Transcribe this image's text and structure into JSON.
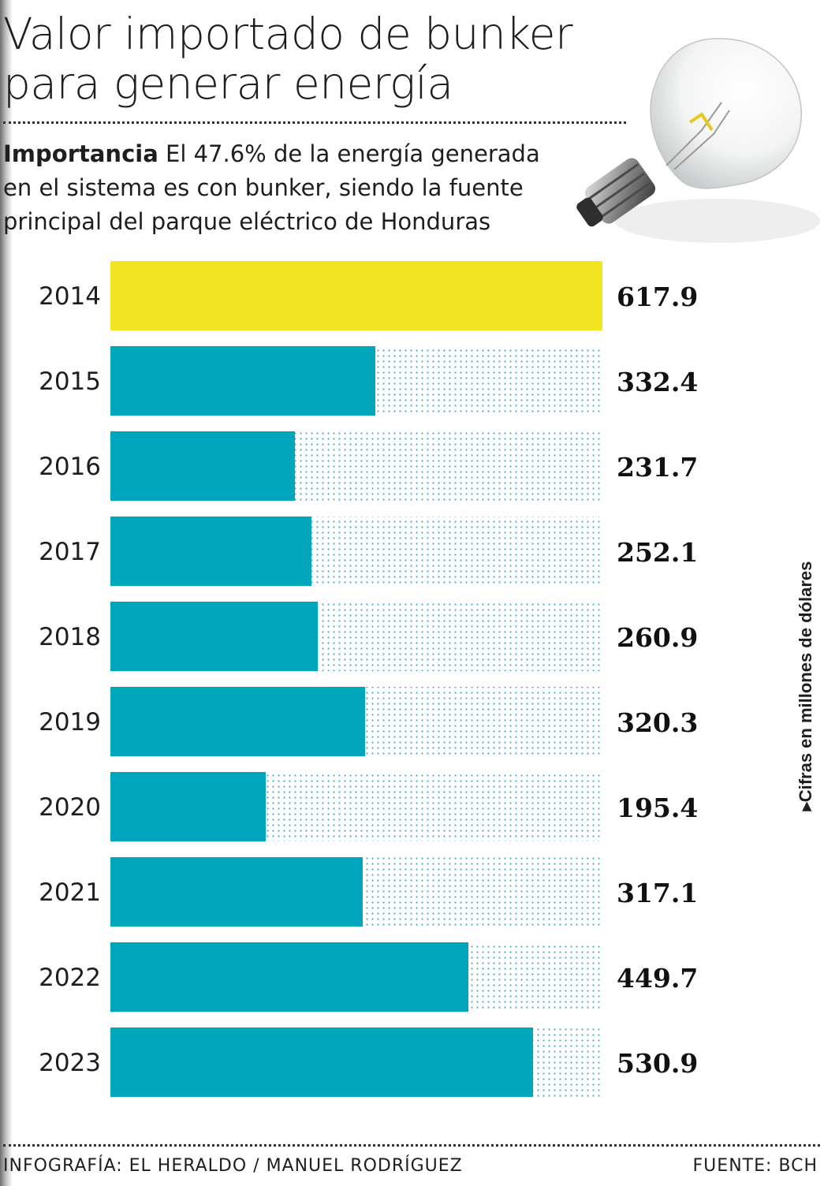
{
  "header": {
    "title_line1": "Valor importado de bunker",
    "title_line2": "para generar energía",
    "subtitle_bold": "Importancia",
    "subtitle_text": "El 47.6% de la energía generada en el sistema es con bunker, siendo la fuente principal del parque eléctrico de Honduras"
  },
  "unit_note": "▸Cifras en millones de dólares",
  "footer": {
    "credit": "INFOGRAFÍA: EL HERALDO / MANUEL RODRÍGUEZ",
    "source": "FUENTE: BCH"
  },
  "colors": {
    "highlight": "#f2e622",
    "bar": "#00a6bb",
    "dots": "#45aebd",
    "text": "#1e1e1e"
  },
  "chart_data": {
    "type": "bar",
    "orientation": "horizontal",
    "title": "Valor importado de bunker para generar energía",
    "unit": "millones de dólares",
    "categories": [
      "2014",
      "2015",
      "2016",
      "2017",
      "2018",
      "2019",
      "2020",
      "2021",
      "2022",
      "2023"
    ],
    "values": [
      617.9,
      332.4,
      231.7,
      252.1,
      260.9,
      320.3,
      195.4,
      317.1,
      449.7,
      530.9
    ],
    "value_labels": [
      "617.9",
      "332.4",
      "231.7",
      "252.1",
      "260.9",
      "320.3",
      "195.4",
      "317.1",
      "449.7",
      "530.9"
    ],
    "highlight_index": 0,
    "xlim": [
      0,
      617.9
    ]
  }
}
